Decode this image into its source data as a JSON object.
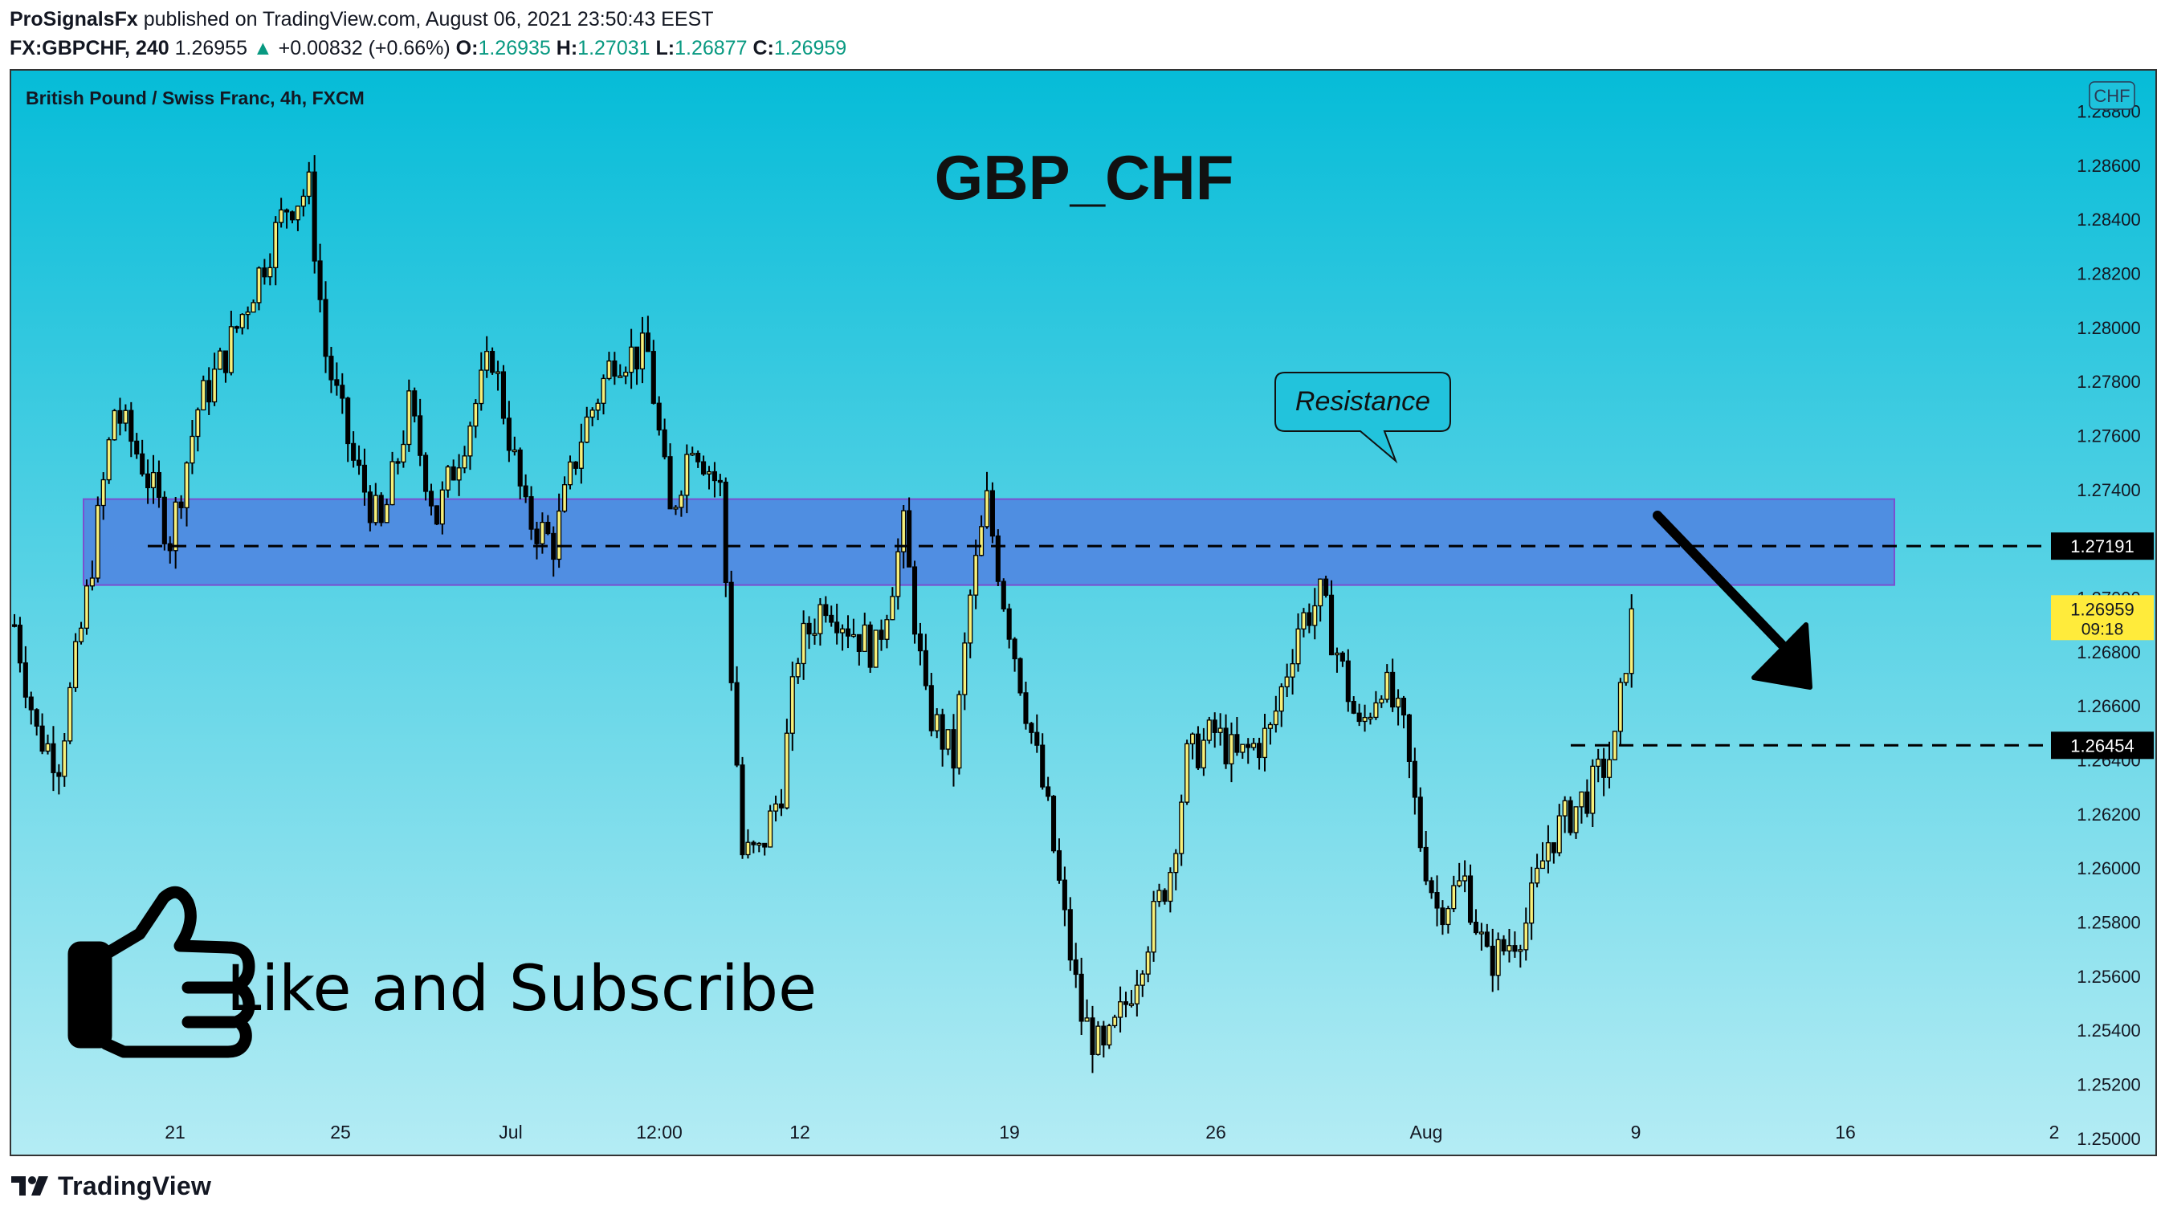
{
  "header": {
    "publisher": "ProSignalsFx",
    "published_text": "published on TradingView.com, August 06, 2021 23:50:43 EEST",
    "symbol": "FX:GBPCHF, 240",
    "last": "1.26955",
    "change_arrow": "▲",
    "change": "+0.00832 (+0.66%)",
    "o_label": "O:",
    "o_value": "1.26935",
    "h_label": "H:",
    "h_value": "1.27031",
    "l_label": "L:",
    "l_value": "1.26877",
    "c_label": "C:",
    "c_value": "1.26959"
  },
  "pane": {
    "instrument_label": "British Pound / Swiss Franc, 4h, FXCM",
    "big_title": "GBP_CHF",
    "currency_badge": "CHF",
    "resistance_callout": "Resistance",
    "promo_text": "Like and Subscribe",
    "promo_icon": "thumbs-up-icon",
    "price_tag_current": "1.26959",
    "price_tag_countdown": "09:18",
    "level_upper": "1.27191",
    "level_lower": "1.26454",
    "arrow_icon": "arrow-down-right-icon"
  },
  "colors": {
    "bg_top": "#06bcd8",
    "bg_bottom": "#b4ecf4",
    "candle_up": "#f7f07a",
    "candle_down": "#000000",
    "zone_fill": "#4f7fe0",
    "zone_border": "#7b4fd0",
    "tag_current_bg": "#ffeb3b",
    "tag_level_bg": "#000000"
  },
  "footer": {
    "brand": "TradingView"
  },
  "chart_data": {
    "type": "candlestick",
    "title": "British Pound / Swiss Franc, 4h, FXCM",
    "y_ticks": [
      "1.28800",
      "1.28600",
      "1.28400",
      "1.28200",
      "1.28000",
      "1.27800",
      "1.27600",
      "1.27400",
      "1.27000",
      "1.26800",
      "1.26600",
      "1.26400",
      "1.26200",
      "1.26000",
      "1.25800",
      "1.25600",
      "1.25400",
      "1.25200",
      "1.25000"
    ],
    "x_ticks": [
      "21",
      "25",
      "Jul",
      "12:00",
      "12",
      "19",
      "26",
      "Aug",
      "9",
      "16",
      "2"
    ],
    "ylim": [
      1.2494,
      1.2895
    ],
    "resistance_zone": [
      1.27047,
      1.27365
    ],
    "levels": [
      1.27191,
      1.26454
    ],
    "last_close": 1.26959,
    "anchors": [
      {
        "bar": 0,
        "price": 1.269
      },
      {
        "bar": 4,
        "price": 1.265
      },
      {
        "bar": 8,
        "price": 1.264
      },
      {
        "bar": 13,
        "price": 1.27
      },
      {
        "bar": 18,
        "price": 1.277
      },
      {
        "bar": 23,
        "price": 1.275
      },
      {
        "bar": 28,
        "price": 1.2722
      },
      {
        "bar": 33,
        "price": 1.277
      },
      {
        "bar": 38,
        "price": 1.279
      },
      {
        "bar": 44,
        "price": 1.282
      },
      {
        "bar": 49,
        "price": 1.2845
      },
      {
        "bar": 53,
        "price": 1.2851
      },
      {
        "bar": 56,
        "price": 1.279
      },
      {
        "bar": 61,
        "price": 1.275
      },
      {
        "bar": 66,
        "price": 1.2725
      },
      {
        "bar": 71,
        "price": 1.277
      },
      {
        "bar": 76,
        "price": 1.273
      },
      {
        "bar": 81,
        "price": 1.276
      },
      {
        "bar": 86,
        "price": 1.279
      },
      {
        "bar": 92,
        "price": 1.273
      },
      {
        "bar": 97,
        "price": 1.272
      },
      {
        "bar": 102,
        "price": 1.276
      },
      {
        "bar": 108,
        "price": 1.279
      },
      {
        "bar": 114,
        "price": 1.279
      },
      {
        "bar": 118,
        "price": 1.273
      },
      {
        "bar": 122,
        "price": 1.276
      },
      {
        "bar": 127,
        "price": 1.274
      },
      {
        "bar": 131,
        "price": 1.2605
      },
      {
        "bar": 134,
        "price": 1.2605
      },
      {
        "bar": 138,
        "price": 1.263
      },
      {
        "bar": 141,
        "price": 1.268
      },
      {
        "bar": 146,
        "price": 1.27
      },
      {
        "bar": 150,
        "price": 1.269
      },
      {
        "bar": 155,
        "price": 1.268
      },
      {
        "bar": 160,
        "price": 1.2725
      },
      {
        "bar": 164,
        "price": 1.266
      },
      {
        "bar": 169,
        "price": 1.264
      },
      {
        "bar": 172,
        "price": 1.27
      },
      {
        "bar": 175,
        "price": 1.2735
      },
      {
        "bar": 178,
        "price": 1.27
      },
      {
        "bar": 182,
        "price": 1.266
      },
      {
        "bar": 186,
        "price": 1.262
      },
      {
        "bar": 189,
        "price": 1.258
      },
      {
        "bar": 192,
        "price": 1.2545
      },
      {
        "bar": 196,
        "price": 1.253
      },
      {
        "bar": 200,
        "price": 1.255
      },
      {
        "bar": 204,
        "price": 1.2575
      },
      {
        "bar": 208,
        "price": 1.26
      },
      {
        "bar": 211,
        "price": 1.264
      },
      {
        "bar": 216,
        "price": 1.265
      },
      {
        "bar": 220,
        "price": 1.264
      },
      {
        "bar": 226,
        "price": 1.265
      },
      {
        "bar": 231,
        "price": 1.269
      },
      {
        "bar": 235,
        "price": 1.27
      },
      {
        "bar": 238,
        "price": 1.268
      },
      {
        "bar": 242,
        "price": 1.265
      },
      {
        "bar": 246,
        "price": 1.267
      },
      {
        "bar": 250,
        "price": 1.265
      },
      {
        "bar": 253,
        "price": 1.261
      },
      {
        "bar": 256,
        "price": 1.2585
      },
      {
        "bar": 261,
        "price": 1.2595
      },
      {
        "bar": 265,
        "price": 1.2565
      },
      {
        "bar": 268,
        "price": 1.257
      },
      {
        "bar": 272,
        "price": 1.258
      },
      {
        "bar": 276,
        "price": 1.261
      },
      {
        "bar": 280,
        "price": 1.262
      },
      {
        "bar": 284,
        "price": 1.263
      },
      {
        "bar": 288,
        "price": 1.2645
      },
      {
        "bar": 291,
        "price": 1.2695
      }
    ]
  }
}
